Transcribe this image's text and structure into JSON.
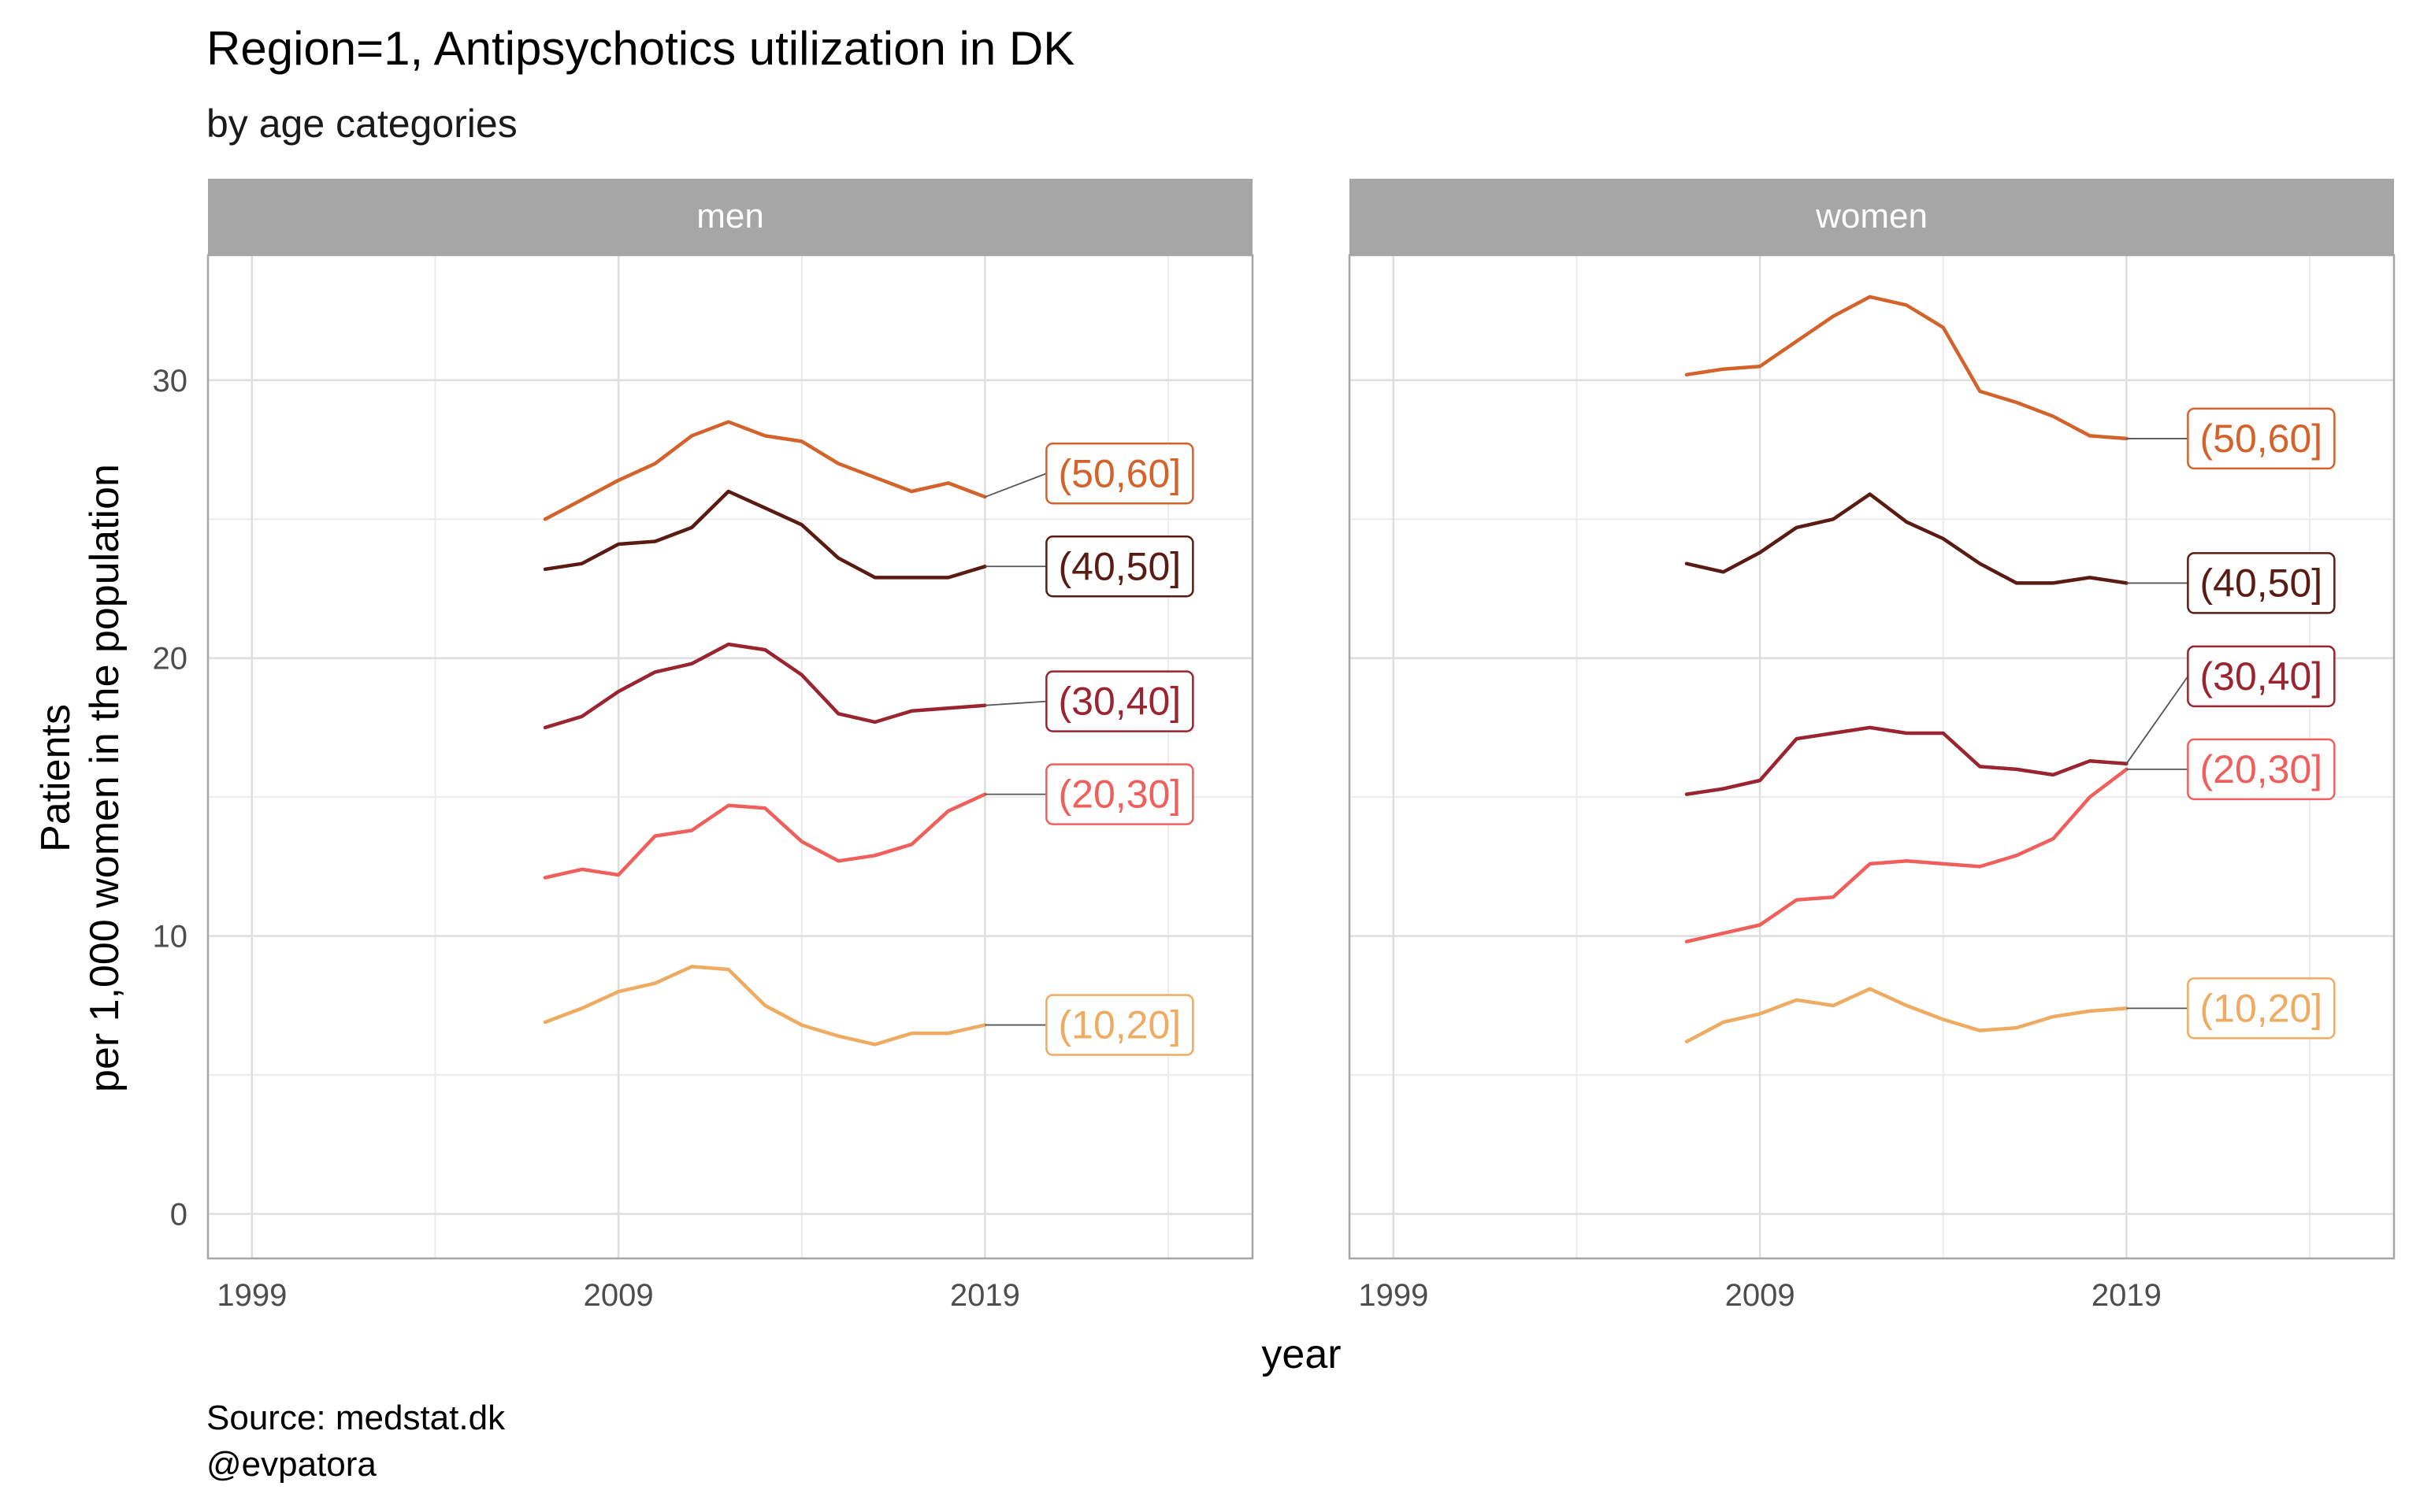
{
  "chart_data": {
    "type": "line",
    "title": "Region=1, Antipsychotics utilization in DK",
    "subtitle": "by age categories",
    "xlabel": "year",
    "ylabel_line1": "Patients",
    "ylabel_line2": "per 1,000 women in the population",
    "caption_line1": "Source: medstat.dk",
    "caption_line2": "@evpatora",
    "xlim": [
      1997.8,
      2026.3
    ],
    "ylim": [
      -1.6,
      34.5
    ],
    "x_ticks": [
      1999,
      2009,
      2019
    ],
    "x_minor": [
      2004,
      2014,
      2024
    ],
    "y_ticks": [
      0,
      10,
      20,
      30
    ],
    "y_minor": [
      5,
      15,
      25
    ],
    "grid": true,
    "legend": "direct labels at line ends",
    "x": [
      2007,
      2008,
      2009,
      2010,
      2011,
      2012,
      2013,
      2014,
      2015,
      2016,
      2017,
      2018,
      2019
    ],
    "colors": {
      "(10,20]": "#eeab62",
      "(20,30]": "#ef5f5c",
      "(30,40]": "#9a2430",
      "(40,50]": "#5a1c12",
      "(50,60]": "#d3632a"
    },
    "label_order": [
      "(10,20]",
      "(20,30]",
      "(30,40]",
      "(40,50]",
      "(50,60]"
    ],
    "panels": [
      {
        "strip": "men",
        "series": [
          {
            "name": "(10,20]",
            "values": [
              6.9,
              7.4,
              8.0,
              8.3,
              8.9,
              8.8,
              7.5,
              6.8,
              6.4,
              6.1,
              6.5,
              6.5,
              6.8
            ]
          },
          {
            "name": "(20,30]",
            "values": [
              12.1,
              12.4,
              12.2,
              13.6,
              13.8,
              14.7,
              14.6,
              13.4,
              12.7,
              12.9,
              13.3,
              14.5,
              15.1
            ]
          },
          {
            "name": "(30,40]",
            "values": [
              17.5,
              17.9,
              18.8,
              19.5,
              19.8,
              20.5,
              20.3,
              19.4,
              18.0,
              17.7,
              18.1,
              18.2,
              18.3
            ]
          },
          {
            "name": "(40,50]",
            "values": [
              23.2,
              23.4,
              24.1,
              24.2,
              24.7,
              26.0,
              25.4,
              24.8,
              23.6,
              22.9,
              22.9,
              22.9,
              23.3
            ]
          },
          {
            "name": "(50,60]",
            "values": [
              25.0,
              25.7,
              26.4,
              27.0,
              28.0,
              28.5,
              28.0,
              27.8,
              27.0,
              26.5,
              26.0,
              26.3,
              25.8
            ]
          }
        ]
      },
      {
        "strip": "women",
        "series": [
          {
            "name": "(10,20]",
            "values": [
              6.2,
              6.9,
              7.2,
              7.7,
              7.5,
              8.1,
              7.5,
              7.0,
              6.6,
              6.7,
              7.1,
              7.3,
              7.4
            ]
          },
          {
            "name": "(20,30]",
            "values": [
              9.8,
              10.1,
              10.4,
              11.3,
              11.4,
              12.6,
              12.7,
              12.6,
              12.5,
              12.9,
              13.5,
              15.0,
              16.0
            ]
          },
          {
            "name": "(30,40]",
            "values": [
              15.1,
              15.3,
              15.6,
              17.1,
              17.3,
              17.5,
              17.3,
              17.3,
              16.1,
              16.0,
              15.8,
              16.3,
              16.2
            ]
          },
          {
            "name": "(40,50]",
            "values": [
              23.4,
              23.1,
              23.8,
              24.7,
              25.0,
              25.9,
              24.9,
              24.3,
              23.4,
              22.7,
              22.7,
              22.9,
              22.7
            ]
          },
          {
            "name": "(50,60]",
            "values": [
              30.2,
              30.4,
              30.5,
              31.4,
              32.3,
              33.0,
              32.7,
              31.9,
              29.6,
              29.2,
              28.7,
              28.0,
              27.9
            ]
          }
        ]
      }
    ]
  }
}
